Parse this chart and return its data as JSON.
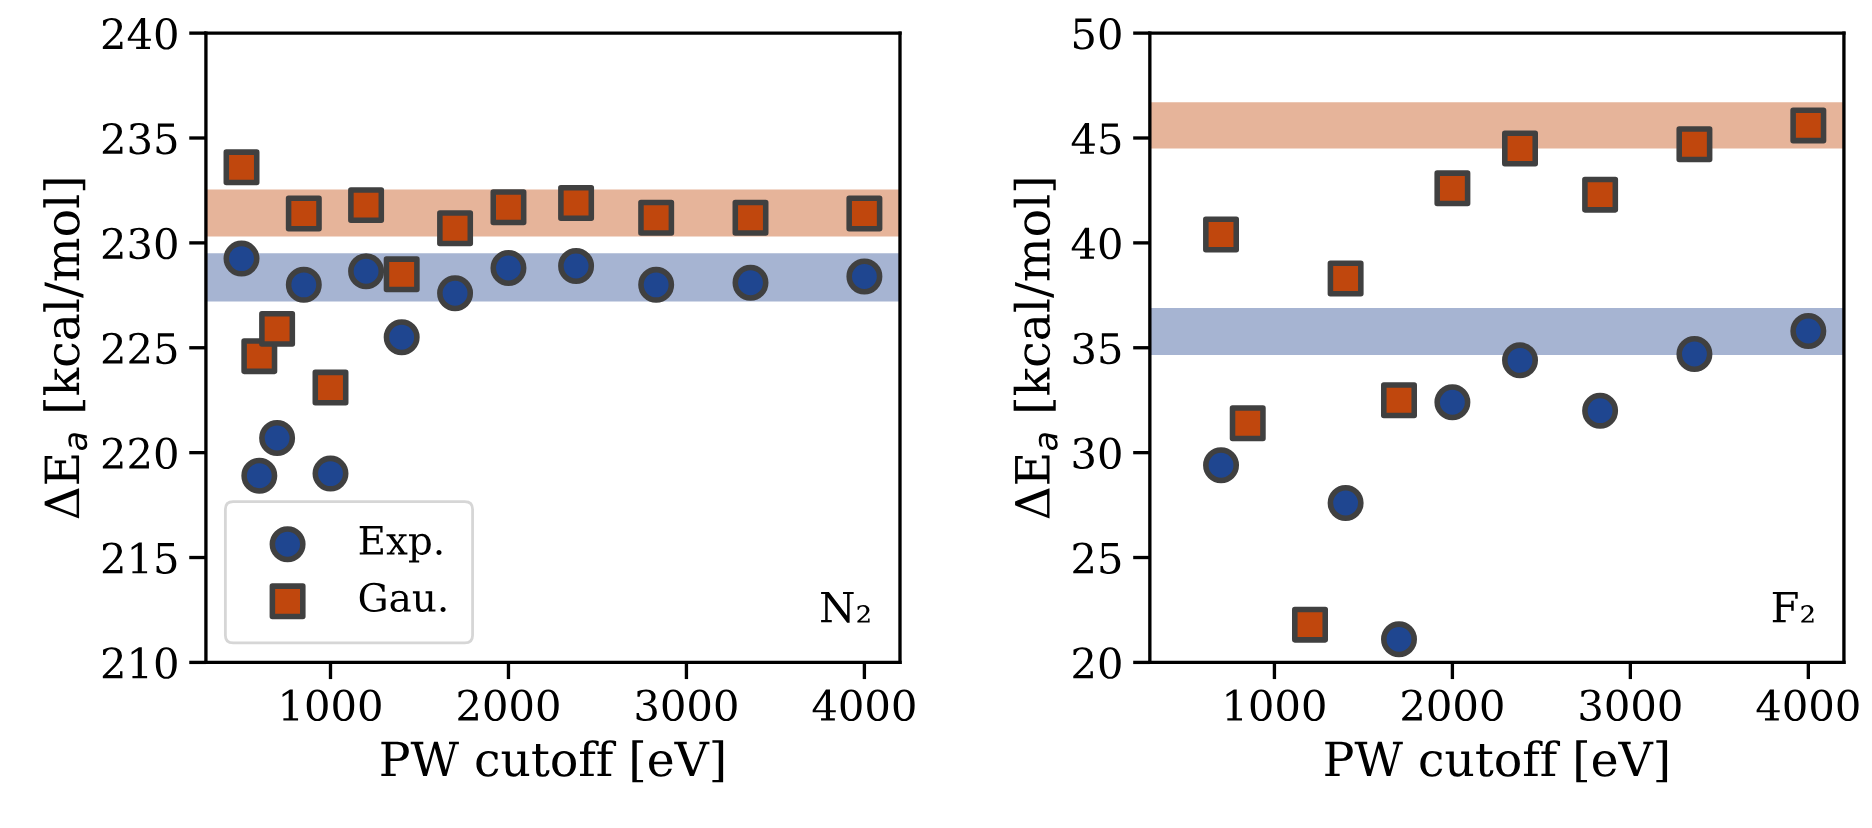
{
  "chart_data": [
    {
      "type": "scatter",
      "xlabel": "PW cutoff [eV]",
      "ylabel": "ΔE$_{a}$ [kcal/mol]",
      "annotations": [
        "N₂"
      ],
      "x": [
        500,
        600,
        700,
        850,
        1000,
        1200,
        1400,
        1700,
        2000,
        2380,
        2830,
        3360,
        4000
      ],
      "series": [
        {
          "name": "Exp.",
          "color": "#1f4690",
          "marker": "circle",
          "values": [
            229.25,
            218.9,
            220.7,
            228.0,
            219.0,
            228.65,
            225.5,
            227.6,
            228.8,
            228.9,
            228.0,
            228.1,
            228.4
          ]
        },
        {
          "name": "Gau.",
          "color": "#c0470d",
          "marker": "square",
          "values": [
            233.6,
            224.6,
            225.9,
            231.4,
            223.1,
            231.8,
            228.5,
            230.7,
            231.7,
            231.9,
            231.2,
            231.2,
            231.4
          ]
        }
      ],
      "bands": [
        {
          "axis": "y",
          "from": 230.3,
          "to": 232.55,
          "color": "#e6b49a"
        },
        {
          "axis": "y",
          "from": 227.2,
          "to": 229.5,
          "color": "#a6b4d2"
        }
      ],
      "xlim": [
        300,
        4200
      ],
      "xticks": [
        1000,
        2000,
        3000,
        4000
      ],
      "ylim": [
        210,
        240
      ],
      "yticks": [
        210,
        215,
        220,
        225,
        230,
        235,
        240
      ],
      "grid": false,
      "legend": "bottom left"
    },
    {
      "type": "scatter",
      "xlabel": "PW cutoff [eV]",
      "ylabel": "ΔE$_{a}$ [kcal/mol]",
      "annotations": [
        "F₂"
      ],
      "series": [
        {
          "color": "#1f4690",
          "marker": "circle",
          "x": [
            700,
            1400,
            1700,
            2000,
            2380,
            2830,
            3360,
            4000
          ],
          "values": [
            29.4,
            27.6,
            21.1,
            32.4,
            34.4,
            32.0,
            34.7,
            35.8
          ]
        },
        {
          "color": "#c0470d",
          "marker": "square",
          "x": [
            700,
            850,
            1200,
            1400,
            1700,
            2000,
            2380,
            2830,
            3360,
            4000
          ],
          "values": [
            40.4,
            31.4,
            21.8,
            38.3,
            32.5,
            42.6,
            44.5,
            42.3,
            44.7,
            45.6
          ]
        }
      ],
      "bands": [
        {
          "axis": "y",
          "from": 44.5,
          "to": 46.7,
          "color": "#e6b49a"
        },
        {
          "axis": "y",
          "from": 34.65,
          "to": 36.9,
          "color": "#a6b4d2"
        }
      ],
      "xlim": [
        300,
        4200
      ],
      "xticks": [
        1000,
        2000,
        3000,
        4000
      ],
      "ylim": [
        20,
        50
      ],
      "yticks": [
        20,
        25,
        30,
        35,
        40,
        45,
        50
      ],
      "grid": false,
      "legend": false
    }
  ]
}
